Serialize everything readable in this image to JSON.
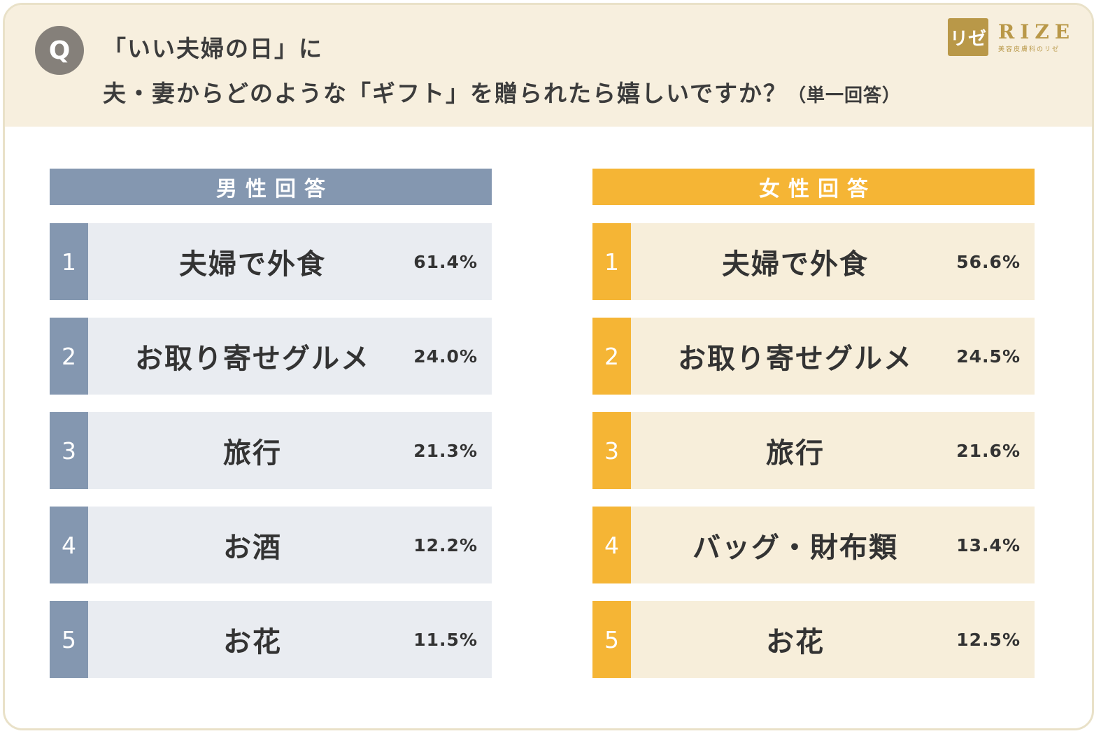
{
  "colors": {
    "male_accent": "#8497b0",
    "male_row_bg": "#e9ecf1",
    "female_accent": "#f5b535",
    "female_row_bg": "#f7eeda"
  },
  "header": {
    "q_badge": "Q",
    "line1": "「いい夫婦の日」に",
    "line2": "夫・妻からどのような「ギフト」を贈られたら嬉しいですか？",
    "note": "（単一回答）",
    "logo_mark": "リゼ",
    "logo_word": "RIZE",
    "logo_sub": "美容皮膚科のリゼ"
  },
  "chart_data": [
    {
      "type": "table",
      "title": "男性回答",
      "categories": [
        "夫婦で外食",
        "お取り寄せグルメ",
        "旅行",
        "お酒",
        "お花"
      ],
      "ranks": [
        "1",
        "2",
        "3",
        "4",
        "5"
      ],
      "values": [
        61.4,
        24.0,
        21.3,
        12.2,
        11.5
      ],
      "labels": [
        "61.4%",
        "24.0%",
        "21.3%",
        "12.2%",
        "11.5%"
      ],
      "unit": "%"
    },
    {
      "type": "table",
      "title": "女性回答",
      "categories": [
        "夫婦で外食",
        "お取り寄せグルメ",
        "旅行",
        "バッグ・財布類",
        "お花"
      ],
      "ranks": [
        "1",
        "2",
        "3",
        "4",
        "5"
      ],
      "values": [
        56.6,
        24.5,
        21.6,
        13.4,
        12.5
      ],
      "labels": [
        "56.6%",
        "24.5%",
        "21.6%",
        "13.4%",
        "12.5%"
      ],
      "unit": "%"
    }
  ]
}
